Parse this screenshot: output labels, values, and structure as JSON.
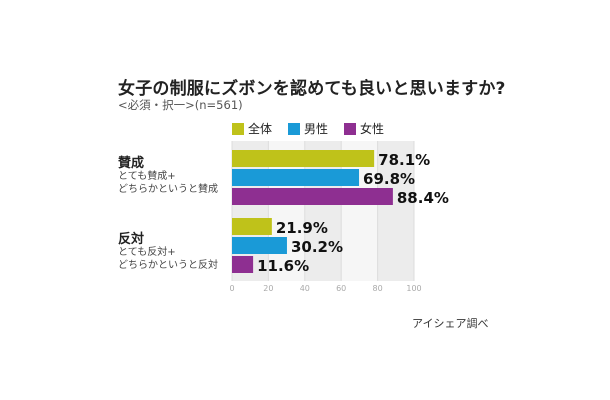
{
  "title": "女子の制服にズボンを認めても良いと思いますか?",
  "subtitle": "<必須・択一>(n=561)",
  "source": "アイシェア調べ",
  "chart_data": {
    "type": "bar",
    "orientation": "horizontal",
    "categories": [
      {
        "title": "賛成",
        "desc": [
          "とても賛成+",
          "どちらかというと賛成"
        ]
      },
      {
        "title": "反対",
        "desc": [
          "とても反対+",
          "どちらかというと反対"
        ]
      }
    ],
    "series": [
      {
        "name": "全体",
        "color": "#bfc21a",
        "values": [
          78.1,
          21.9
        ]
      },
      {
        "name": "男性",
        "color": "#1a9ad7",
        "values": [
          69.8,
          30.2
        ]
      },
      {
        "name": "女性",
        "color": "#8e2f91",
        "values": [
          88.4,
          11.6
        ]
      }
    ],
    "value_labels": [
      [
        "78.1%",
        "21.9%"
      ],
      [
        "69.8%",
        "30.2%"
      ],
      [
        "88.4%",
        "11.6%"
      ]
    ],
    "xlim": [
      0,
      100
    ],
    "xticks": [
      "0",
      "20",
      "40",
      "60",
      "80",
      "100"
    ],
    "grid": true,
    "legend_position": "top"
  }
}
